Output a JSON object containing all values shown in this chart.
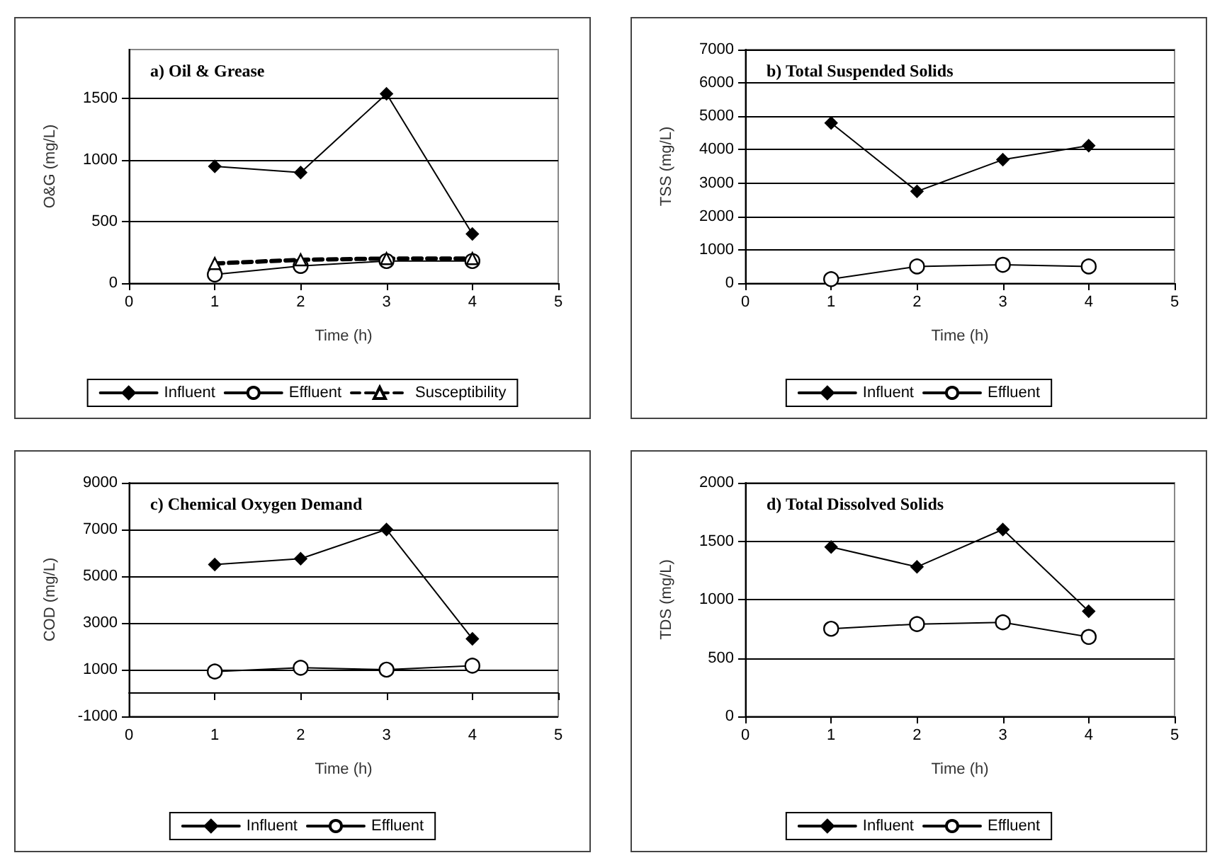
{
  "chart_data": [
    {
      "type": "line",
      "title": "a) Oil & Grease",
      "xlabel": "Time (h)",
      "ylabel": "O&G (mg/L)",
      "x": [
        1,
        2,
        3,
        4
      ],
      "xlim": [
        0,
        5
      ],
      "xticks": [
        0,
        1,
        2,
        3,
        4,
        5
      ],
      "ylim": [
        0,
        1900
      ],
      "yticks": [
        0,
        500,
        1000,
        1500
      ],
      "grid": "y",
      "legend": "bottom",
      "series": [
        {
          "name": "Influent",
          "color": "#000000",
          "marker": "diamond",
          "line_style": "solid",
          "values": [
            950,
            900,
            1540,
            400
          ]
        },
        {
          "name": "Effluent",
          "color": "#000000",
          "marker": "circle",
          "line_style": "solid",
          "values": [
            70,
            140,
            180,
            180
          ]
        },
        {
          "name": "Susceptibility",
          "color": "#000000",
          "marker": "triangle",
          "line_style": "dashed",
          "values": [
            160,
            190,
            200,
            200
          ]
        }
      ]
    },
    {
      "type": "line",
      "title": "b) Total Suspended Solids",
      "xlabel": "Time (h)",
      "ylabel": "TSS (mg/L)",
      "x": [
        1,
        2,
        3,
        4
      ],
      "xlim": [
        0,
        5
      ],
      "xticks": [
        0,
        1,
        2,
        3,
        4,
        5
      ],
      "ylim": [
        0,
        7000
      ],
      "yticks": [
        0,
        1000,
        2000,
        3000,
        4000,
        5000,
        6000,
        7000
      ],
      "grid": "y",
      "legend": "bottom",
      "series": [
        {
          "name": "Influent",
          "color": "#000000",
          "marker": "diamond",
          "line_style": "solid",
          "values": [
            4800,
            2750,
            3700,
            4120
          ]
        },
        {
          "name": "Effluent",
          "color": "#000000",
          "marker": "circle",
          "line_style": "solid",
          "values": [
            120,
            500,
            550,
            500
          ]
        }
      ]
    },
    {
      "type": "line",
      "title": "c) Chemical Oxygen Demand",
      "xlabel": "Time (h)",
      "ylabel": "COD (mg/L)",
      "x": [
        1,
        2,
        3,
        4
      ],
      "xlim": [
        0,
        5
      ],
      "xticks": [
        0,
        1,
        2,
        3,
        4,
        5
      ],
      "ylim": [
        -1000,
        9000
      ],
      "yticks": [
        -1000,
        1000,
        3000,
        5000,
        7000,
        9000
      ],
      "grid": "y",
      "legend": "bottom",
      "series": [
        {
          "name": "Influent",
          "color": "#000000",
          "marker": "diamond",
          "line_style": "solid",
          "values": [
            5500,
            5750,
            7000,
            2320
          ]
        },
        {
          "name": "Effluent",
          "color": "#000000",
          "marker": "circle",
          "line_style": "solid",
          "values": [
            920,
            1080,
            1000,
            1170
          ]
        }
      ]
    },
    {
      "type": "line",
      "title": "d) Total Dissolved Solids",
      "xlabel": "Time (h)",
      "ylabel": "TDS (mg/L)",
      "x": [
        1,
        2,
        3,
        4
      ],
      "xlim": [
        0,
        5
      ],
      "xticks": [
        0,
        1,
        2,
        3,
        4,
        5
      ],
      "ylim": [
        0,
        2000
      ],
      "yticks": [
        0,
        500,
        1000,
        1500,
        2000
      ],
      "grid": "y",
      "legend": "bottom",
      "series": [
        {
          "name": "Influent",
          "color": "#000000",
          "marker": "diamond",
          "line_style": "solid",
          "values": [
            1450,
            1280,
            1600,
            900
          ]
        },
        {
          "name": "Effluent",
          "color": "#000000",
          "marker": "circle",
          "line_style": "solid",
          "values": [
            750,
            790,
            805,
            680
          ]
        }
      ]
    }
  ]
}
